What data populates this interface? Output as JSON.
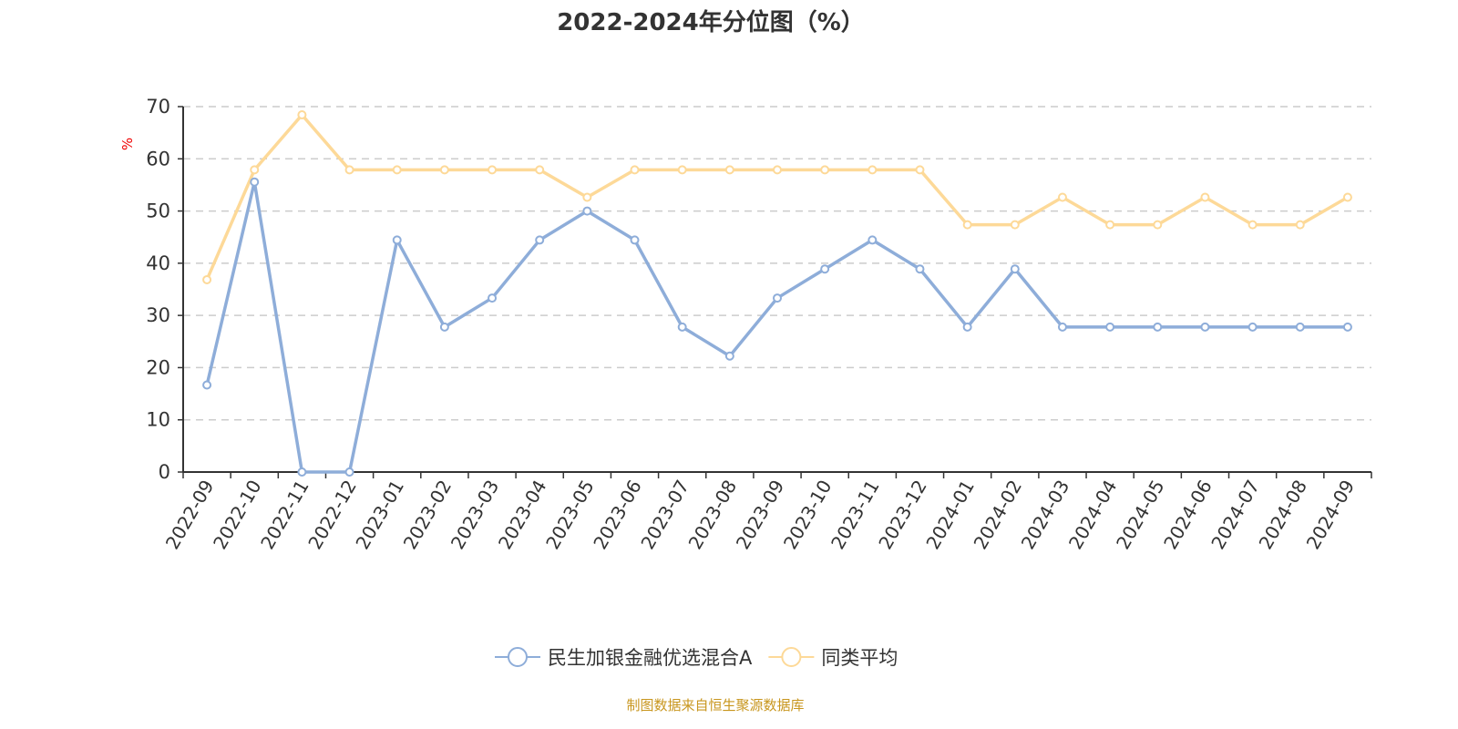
{
  "chart_data": {
    "type": "line",
    "title": "2022-2024年分位图（%）",
    "ylabel": "%",
    "xlabel": "",
    "ylim": [
      0,
      70
    ],
    "yticks": [
      0,
      10,
      20,
      30,
      40,
      50,
      60,
      70
    ],
    "grid": true,
    "legend_position": "bottom",
    "categories": [
      "2022-09",
      "2022-10",
      "2022-11",
      "2022-12",
      "2023-01",
      "2023-02",
      "2023-03",
      "2023-04",
      "2023-05",
      "2023-06",
      "2023-07",
      "2023-08",
      "2023-09",
      "2023-10",
      "2023-11",
      "2023-12",
      "2024-01",
      "2024-02",
      "2024-03",
      "2024-04",
      "2024-05",
      "2024-06",
      "2024-07",
      "2024-08",
      "2024-09"
    ],
    "series": [
      {
        "name": "民生加银金融优选混合A",
        "color": "#8eadd9",
        "values": [
          16.67,
          55.56,
          0,
          0,
          44.44,
          27.78,
          33.33,
          44.44,
          50,
          44.44,
          27.78,
          22.22,
          33.33,
          38.89,
          44.44,
          38.89,
          27.78,
          38.89,
          27.78,
          27.78,
          27.78,
          27.78,
          27.78,
          27.78,
          27.78
        ]
      },
      {
        "name": "同类平均",
        "color": "#fdd998",
        "values": [
          36.84,
          57.89,
          68.42,
          57.89,
          57.89,
          57.89,
          57.89,
          57.89,
          52.63,
          57.89,
          57.89,
          57.89,
          57.89,
          57.89,
          57.89,
          57.89,
          47.37,
          47.37,
          52.63,
          47.37,
          47.37,
          52.63,
          47.37,
          47.37,
          52.63
        ]
      }
    ]
  },
  "source": "制图数据来自恒生聚源数据库"
}
